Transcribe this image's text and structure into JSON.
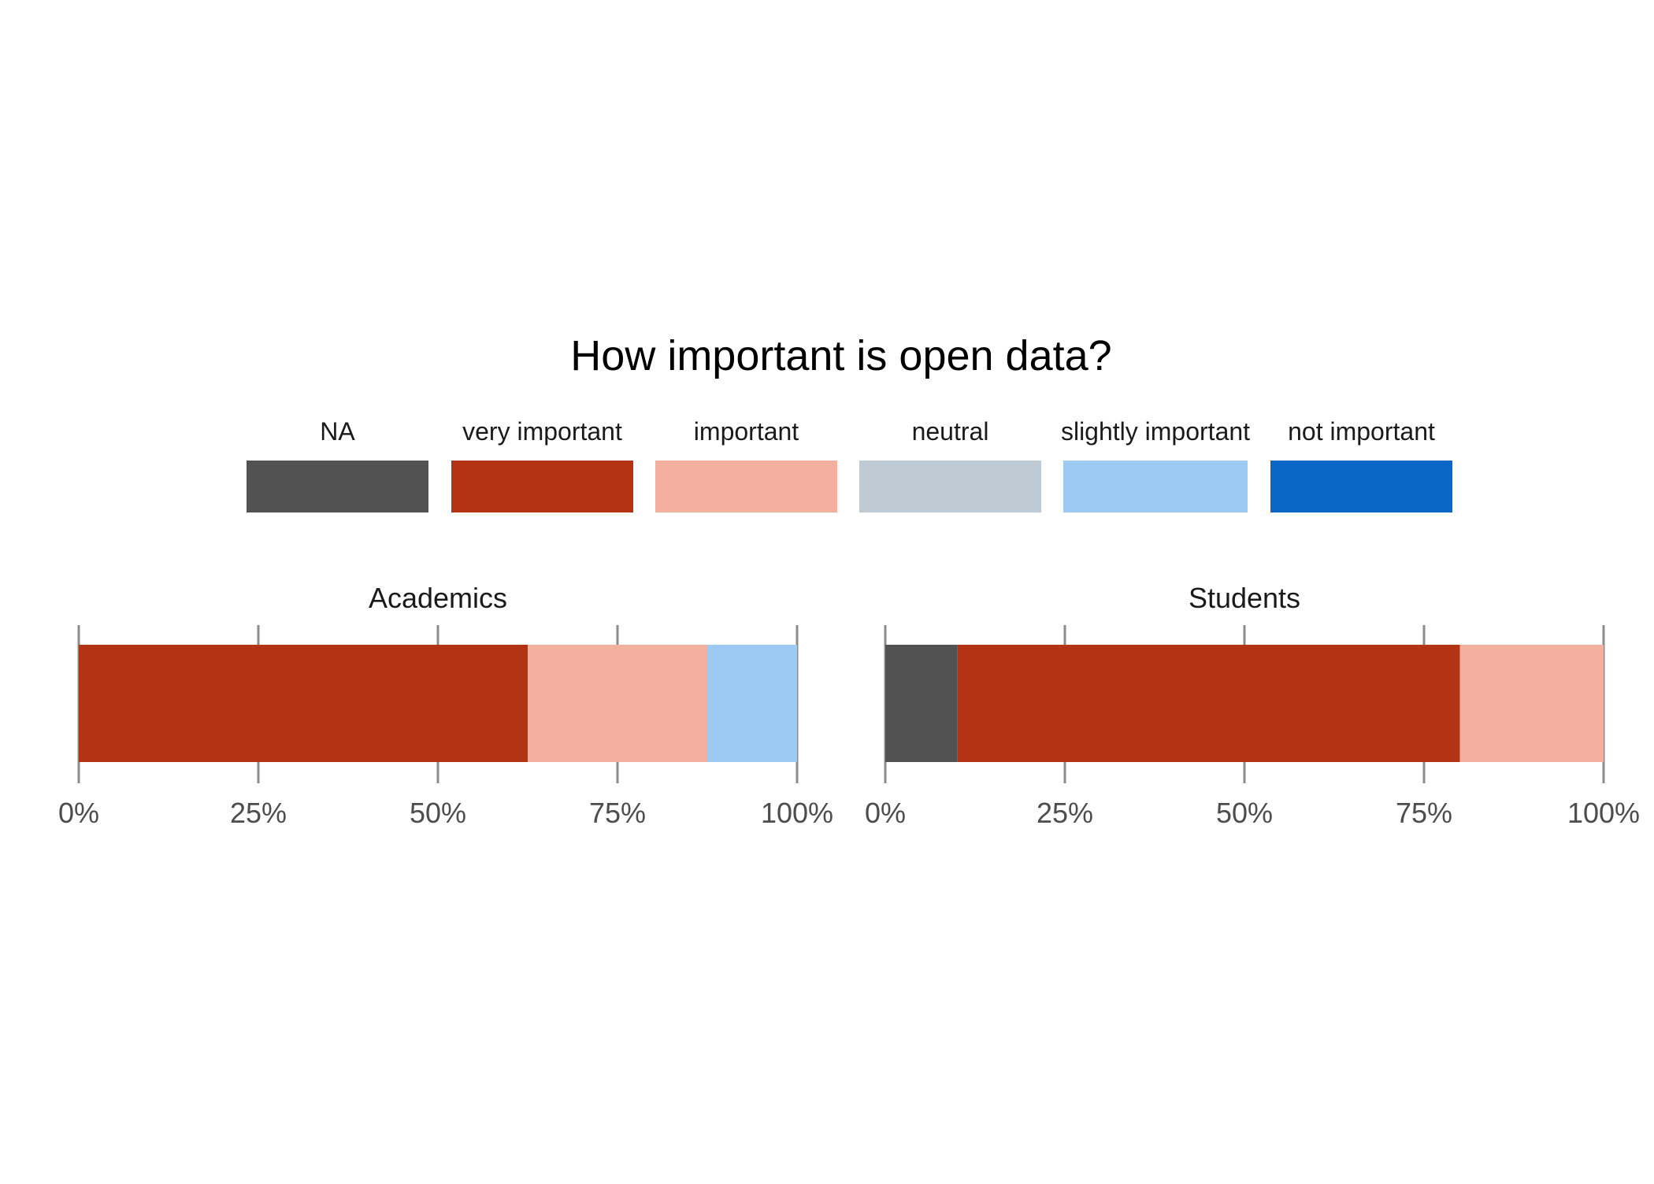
{
  "chart_data": {
    "type": "bar",
    "orientation": "horizontal",
    "stacked": true,
    "title": "How important is open data?",
    "legend": {
      "placement": "top",
      "entries": [
        "NA",
        "very important",
        "important",
        "neutral",
        "slightly important",
        "not important"
      ]
    },
    "colors": {
      "NA": "#525252",
      "very important": "#B33414",
      "important": "#F4B09F",
      "neutral": "#BFCBD4",
      "slightly important": "#9CCAF2",
      "not important": "#0A67C7"
    },
    "xlim": [
      0,
      100
    ],
    "x_ticks": [
      "0%",
      "25%",
      "50%",
      "75%",
      "100%"
    ],
    "grid": false,
    "facets": [
      {
        "label": "Academics",
        "segments": [
          {
            "category": "very important",
            "value": 62.5
          },
          {
            "category": "important",
            "value": 25.0
          },
          {
            "category": "slightly important",
            "value": 12.5
          }
        ]
      },
      {
        "label": "Students",
        "segments": [
          {
            "category": "NA",
            "value": 10.0
          },
          {
            "category": "very important",
            "value": 70.0
          },
          {
            "category": "important",
            "value": 20.0
          }
        ]
      }
    ]
  }
}
